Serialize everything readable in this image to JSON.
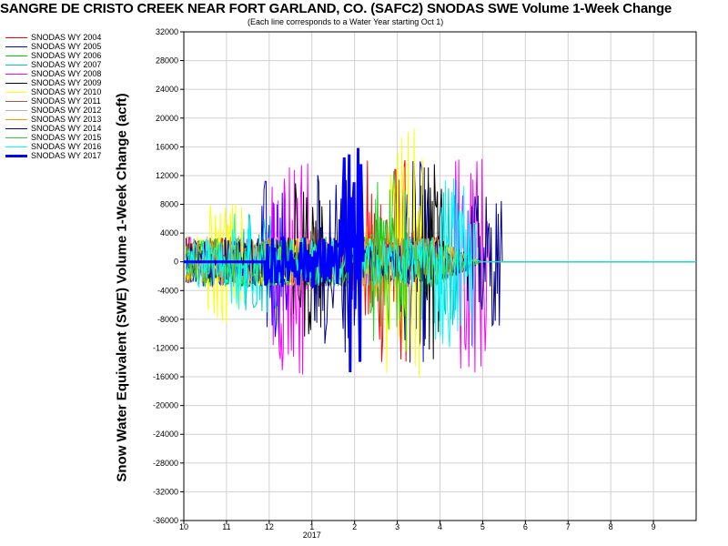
{
  "chart_data": {
    "type": "line",
    "title": "SANGRE DE CRISTO CREEK NEAR FORT GARLAND, CO. (SAFC2) SNODAS SWE Volume 1-Week Change",
    "subtitle": "(Each line corresponds to a Water Year starting Oct 1)",
    "ylabel": "Snow Water Equivalent (SWE) Volume 1-Week Change (acft)",
    "xlabel": "",
    "x_year_label": "2017",
    "ylim": [
      -36000,
      32000
    ],
    "y_ticks": [
      "32000",
      "28000",
      "24000",
      "20000",
      "16000",
      "12000",
      "8000",
      "4000",
      "0",
      "-4000",
      "-8000",
      "-12000",
      "-16000",
      "-20000",
      "-24000",
      "-28000",
      "-32000",
      "-36000"
    ],
    "x_ticks": [
      "10",
      "11",
      "12",
      "1",
      "2",
      "3",
      "4",
      "5",
      "6",
      "7",
      "8",
      "9"
    ],
    "grid": true,
    "legend_position": "left",
    "series": [
      {
        "name": "SNODAS WY 2004",
        "color": "#ff0000"
      },
      {
        "name": "SNODAS WY 2005",
        "color": "#0000ff"
      },
      {
        "name": "SNODAS WY 2006",
        "color": "#00cc00"
      },
      {
        "name": "SNODAS WY 2007",
        "color": "#00c8c8"
      },
      {
        "name": "SNODAS WY 2008",
        "color": "#ff00ff"
      },
      {
        "name": "SNODAS WY 2009",
        "color": "#000000"
      },
      {
        "name": "SNODAS WY 2010",
        "color": "#ffff00"
      },
      {
        "name": "SNODAS WY 2011",
        "color": "#a06040"
      },
      {
        "name": "SNODAS WY 2012",
        "color": "#b0b0b0"
      },
      {
        "name": "SNODAS WY 2013",
        "color": "#ff9900"
      },
      {
        "name": "SNODAS WY 2014",
        "color": "#00008b"
      },
      {
        "name": "SNODAS WY 2015",
        "color": "#33cc33"
      },
      {
        "name": "SNODAS WY 2016",
        "color": "#00ffff"
      },
      {
        "name": "SNODAS WY 2017",
        "color": "#0000ff",
        "bold": true
      }
    ]
  }
}
